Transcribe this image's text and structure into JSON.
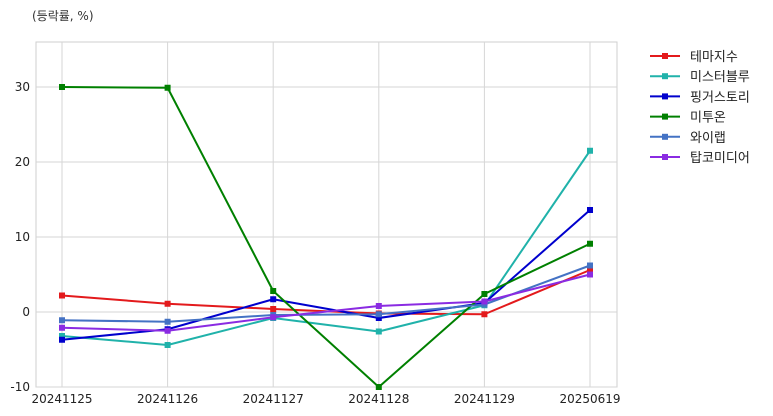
{
  "chart_data": {
    "type": "line",
    "unit_label": "(등락률, %)",
    "categories": [
      "20241125",
      "20241126",
      "20241127",
      "20241128",
      "20241129",
      "20250619"
    ],
    "ylim": [
      -10,
      36
    ],
    "yticks": [
      -10,
      0,
      10,
      20,
      30
    ],
    "grid": true,
    "legend_position": "right",
    "series": [
      {
        "name": "테마지수",
        "color": "#e31a1c",
        "values": [
          2.2,
          1.1,
          0.4,
          -0.2,
          -0.3,
          5.6
        ]
      },
      {
        "name": "미스터블루",
        "color": "#20b2aa",
        "values": [
          -3.2,
          -4.4,
          -0.8,
          -2.6,
          0.9,
          21.5
        ]
      },
      {
        "name": "핑거스토리",
        "color": "#0000cd",
        "values": [
          -3.7,
          -2.3,
          1.7,
          -0.8,
          1.2,
          13.6
        ]
      },
      {
        "name": "미투온",
        "color": "#008000",
        "values": [
          30.0,
          29.9,
          2.8,
          -10.0,
          2.4,
          9.1
        ]
      },
      {
        "name": "와이랩",
        "color": "#4472c4",
        "values": [
          -1.1,
          -1.3,
          -0.4,
          -0.3,
          1.0,
          6.2
        ]
      },
      {
        "name": "탑코미디어",
        "color": "#8a2be2",
        "values": [
          -2.1,
          -2.5,
          -0.7,
          0.8,
          1.4,
          5.0
        ]
      }
    ]
  }
}
